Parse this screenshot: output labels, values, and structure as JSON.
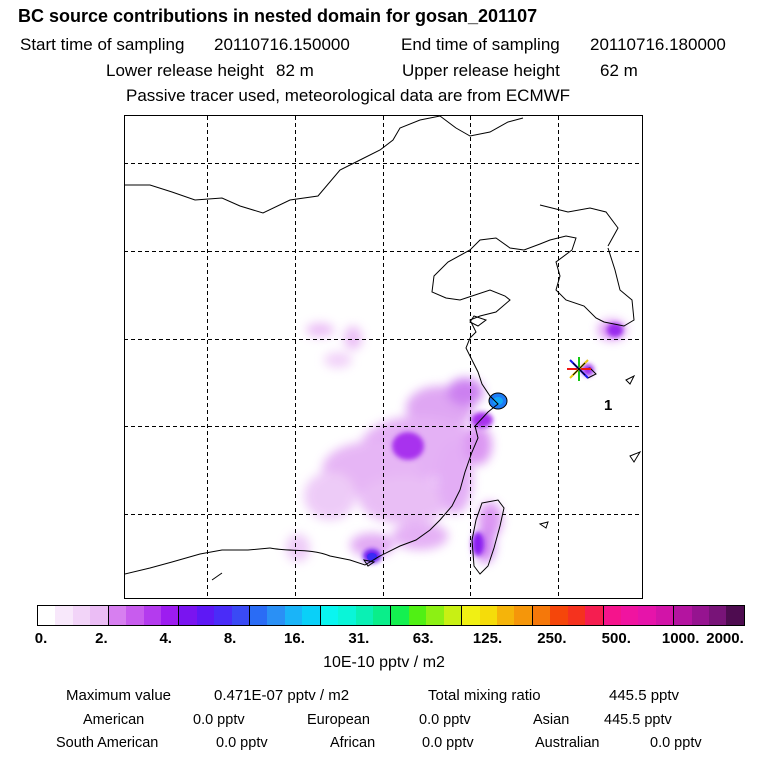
{
  "header": {
    "title": "BC  source contributions in nested domain for gosan_201107",
    "start_label": "Start time of sampling",
    "start_value": "20110716.150000",
    "end_label": "End time of sampling",
    "end_value": "20110716.180000",
    "lower_label": "Lower release height",
    "lower_value": "82 m",
    "upper_label": "Upper release height",
    "upper_value": "62 m",
    "tracer_note": "Passive tracer used, meteorological data are from ECMWF"
  },
  "map": {
    "receptor_label": "1"
  },
  "colorbar": {
    "colors": [
      "#ffffff",
      "#f8e8fb",
      "#f2d4f8",
      "#ebbdf5",
      "#d77ff0",
      "#c85cee",
      "#b43bee",
      "#9d1cf0",
      "#7a14f0",
      "#5e18f5",
      "#4a2cf8",
      "#3a4af5",
      "#2a6cf5",
      "#2a90f5",
      "#1ab4f8",
      "#0ad0f8",
      "#0af5f0",
      "#0af5d8",
      "#0af0b4",
      "#0aee8a",
      "#14f050",
      "#50f014",
      "#8cf014",
      "#c8f014",
      "#f0f014",
      "#f5dc0a",
      "#f5b40a",
      "#f5960a",
      "#f5780a",
      "#f5460a",
      "#f5321e",
      "#f51e50",
      "#f5148c",
      "#f014a0",
      "#e614aa",
      "#d214a8",
      "#b414a0",
      "#961490",
      "#781478",
      "#4e0c50"
    ],
    "tick_labels": [
      "0.",
      "2.",
      "4.",
      "8.",
      "16.",
      "31.",
      "63.",
      "125.",
      "250.",
      "500.",
      "1000.",
      "2000."
    ],
    "units": "10E-10 pptv / m2"
  },
  "summary": {
    "max_label": "Maximum value",
    "max_value": "0.471E-07 pptv / m2",
    "total_label": "Total mixing ratio",
    "total_value": "445.5 pptv",
    "sources": [
      {
        "name": "American",
        "value": "0.0 pptv"
      },
      {
        "name": "European",
        "value": "0.0 pptv"
      },
      {
        "name": "Asian",
        "value": "445.5 pptv"
      },
      {
        "name": "South American",
        "value": "0.0 pptv"
      },
      {
        "name": "African",
        "value": "0.0 pptv"
      },
      {
        "name": "Australian",
        "value": "0.0 pptv"
      }
    ]
  }
}
